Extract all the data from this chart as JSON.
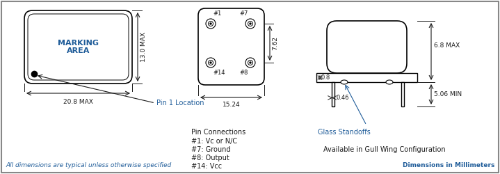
{
  "bg_color": "#ffffff",
  "border_color": "#000000",
  "text_color_blue": "#1F5C99",
  "text_color_dark": "#1a1a1a",
  "dim_color": "#555555",
  "title_bottom_left": "All dimensions are typical unless otherwise specified",
  "title_bottom_right": "Dimensions in Millimeters",
  "marking_area_text": "MARKING\nAREA",
  "dim_width": "20.8 MAX",
  "dim_height": "13.0 MAX",
  "pin1_label": "Pin 1 Location",
  "pin_connections": "Pin Connections",
  "pin1_conn": "#1: Vc or N/C",
  "pin7_conn": "#7: Ground",
  "pin8_conn": "#8: Output",
  "pin14_conn": "#14: Vcc",
  "dim_1524": "15.24",
  "dim_762": "7.62",
  "dim_08": "0.8",
  "dim_046": "0.46",
  "dim_68max": "6.8 MAX",
  "dim_506min": "5.06 MIN",
  "glass_standoffs": "Glass Standoffs",
  "gull_wing": "Available in Gull Wing Configuration"
}
